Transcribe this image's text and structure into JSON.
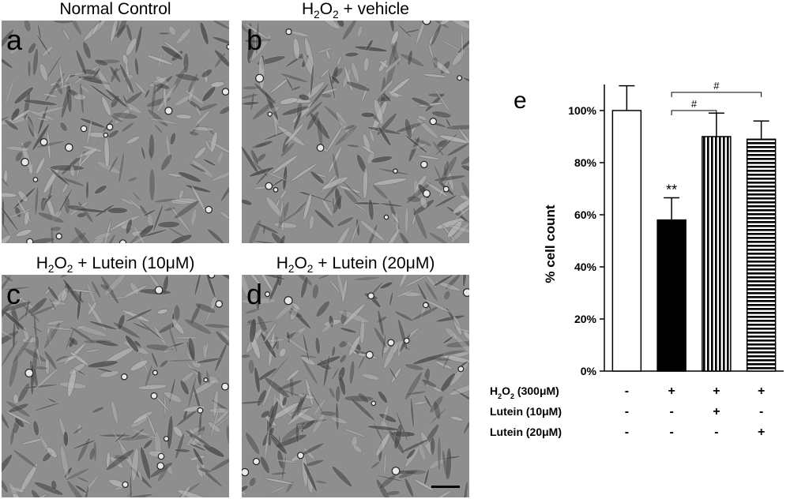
{
  "panels": [
    {
      "letter": "a",
      "title_html": "Normal Control"
    },
    {
      "letter": "b",
      "title_html": "H<sub>2</sub>O<sub>2</sub> + vehicle"
    },
    {
      "letter": "c",
      "title_html": "H<sub>2</sub>O<sub>2</sub> + Lutein (10μM)"
    },
    {
      "letter": "d",
      "title_html": "H<sub>2</sub>O<sub>2</sub> + Lutein (20μM)"
    }
  ],
  "chart_data": {
    "type": "bar",
    "panel_letter": "e",
    "ylabel": "% cell count",
    "ylim": [
      0,
      110
    ],
    "yticks": [
      "0%",
      "20%",
      "40%",
      "60%",
      "80%",
      "100%"
    ],
    "ytick_values": [
      0,
      20,
      40,
      60,
      80,
      100
    ],
    "categories": [
      "1",
      "2",
      "3",
      "4"
    ],
    "values": [
      100,
      58,
      90,
      89
    ],
    "errors": [
      9.5,
      8.5,
      9,
      7
    ],
    "fills": [
      "white",
      "black",
      "vertical-stripes",
      "horizontal-stripes"
    ],
    "annotations": [
      {
        "bar": 1,
        "text": "**"
      }
    ],
    "comparisons": [
      {
        "from": 1,
        "to": 2,
        "text": "#"
      },
      {
        "from": 1,
        "to": 3,
        "text": "#"
      }
    ],
    "treatment_rows": [
      {
        "label_html": "H<tspan baseline-shift='sub' font-size='9'>2</tspan>O<tspan baseline-shift='sub' font-size='9'>2</tspan> (300μM)",
        "signs": [
          "-",
          "+",
          "+",
          "+"
        ]
      },
      {
        "label_html": "Lutein (10μM)",
        "signs": [
          "-",
          "-",
          "+",
          "-"
        ]
      },
      {
        "label_html": "Lutein (20μM)",
        "signs": [
          "-",
          "-",
          "-",
          "+"
        ]
      }
    ],
    "grid": false
  }
}
